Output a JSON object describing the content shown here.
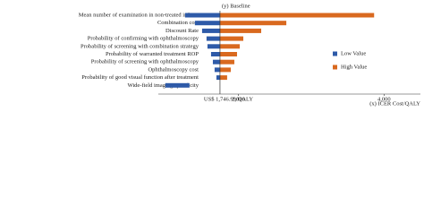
{
  "chart_data": {
    "type": "tornado",
    "baseline_label": "(y) Baseline",
    "baseline": 1746.99,
    "baseline_annotation": "US$ 1,746.99/QALY",
    "xlabel": "(x) ICER Cost/QALY",
    "categories": [
      "Mean number of examination in non-treated infants",
      "Combination cost",
      "Discount Rate",
      "Probability of confirming with ophthalmoscopy",
      "Probability of screening with combination strategy",
      "Probability of warranted treatment ROP",
      "Probability of screening with ophthalmoscopy",
      "Ophthalmoscopy cost",
      "Probability of good visual function after treatment",
      "Wide-field imaging specificity"
    ],
    "series": [
      {
        "name": "Low Value",
        "color": "#2e5aa8",
        "values": [
          1267,
          1402,
          1501,
          1562,
          1575,
          1624,
          1649,
          1673,
          1698,
          996
        ]
      },
      {
        "name": "High Value",
        "color": "#d9691f",
        "values": [
          3864,
          2658,
          2313,
          2067,
          2018,
          1981,
          1944,
          1895,
          1845,
          1328
        ]
      }
    ],
    "xlim": [
      900,
      4500
    ],
    "xticks": [
      {
        "value": 2000,
        "label": "2,000"
      },
      {
        "value": 4000,
        "label": "4,000"
      }
    ],
    "legend": "right"
  }
}
